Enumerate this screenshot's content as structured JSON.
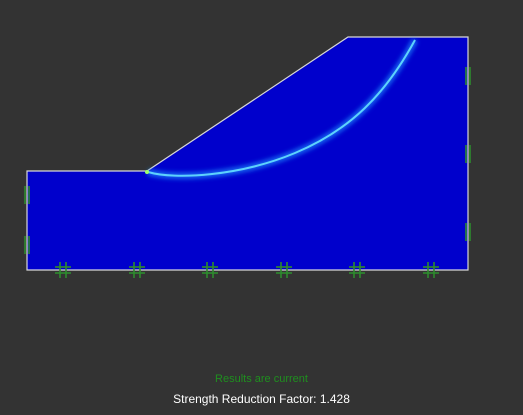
{
  "model_view": {
    "colors": {
      "background": "#333333",
      "slope_fill": "#0000cc",
      "outline": "#d8d8d8",
      "shear_band_glow": "#1a8cff",
      "shear_band_core": "#66e0ff",
      "support_marker": "#2e8b2e",
      "results_text": "#1f8f1f",
      "readout_text": "#ffffff"
    },
    "supports": {
      "left_edge": [
        "roller-icon",
        "roller-icon"
      ],
      "right_edge": [
        "roller-icon",
        "roller-icon",
        "roller-icon"
      ],
      "bottom_edge": [
        "pin-icon",
        "pin-icon",
        "pin-icon",
        "pin-icon",
        "pin-icon",
        "pin-icon"
      ]
    }
  },
  "status": {
    "results_label": "Results are current",
    "srf_readout": "Strength Reduction Factor: 1.428"
  }
}
